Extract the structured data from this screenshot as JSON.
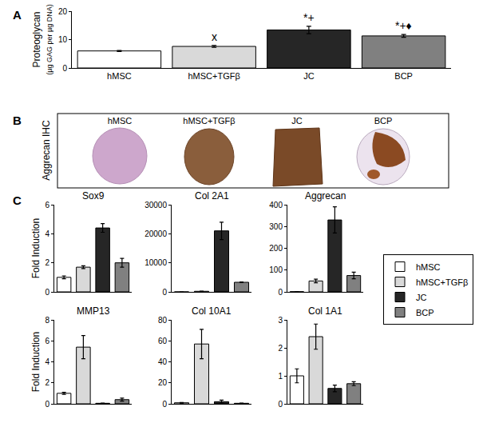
{
  "panel_labels": [
    "A",
    "B",
    "C"
  ],
  "panel_b": {
    "row_label": "Aggrecan IHC",
    "titles": [
      "hMSC",
      "hMSC+TGFβ",
      "JC",
      "BCP"
    ]
  },
  "chart_data": [
    {
      "type": "bar",
      "categories": [
        "hMSC",
        "hMSC+TGFβ",
        "JC",
        "BCP"
      ],
      "values": [
        6.0,
        7.6,
        13.4,
        11.3
      ],
      "errors": [
        0.2,
        0.3,
        1.3,
        0.5
      ],
      "colors": [
        "#ffffff",
        "#d9d9d9",
        "#262626",
        "#808080"
      ],
      "ylabel": [
        "Proteoglycan",
        "(µg GAG per µg DNA)"
      ],
      "ylim": [
        0,
        20
      ],
      "yticks": [
        0,
        10,
        20
      ],
      "annotations": [
        {
          "category": "hMSC+TGFβ",
          "text": "x"
        },
        {
          "category": "JC",
          "text": "*+"
        },
        {
          "category": "BCP",
          "text": "*+♦"
        }
      ]
    },
    {
      "type": "bar",
      "title": "Sox9",
      "categories": [
        "hMSC",
        "hMSC+TGFβ",
        "JC",
        "BCP"
      ],
      "values": [
        1.0,
        1.7,
        4.4,
        2.0
      ],
      "errors": [
        0.1,
        0.1,
        0.3,
        0.3
      ],
      "colors": [
        "#ffffff",
        "#d9d9d9",
        "#262626",
        "#808080"
      ],
      "ylabel": "Fold Induction",
      "ylim": [
        0,
        6
      ],
      "yticks": [
        0,
        2,
        4,
        6
      ],
      "tick_labels": "y",
      "legend": "right"
    },
    {
      "type": "bar",
      "title": "Col 2A1",
      "categories": [
        "hMSC",
        "hMSC+TGFβ",
        "JC",
        "BCP"
      ],
      "values": [
        1,
        200,
        21000,
        3300
      ],
      "errors": [
        0,
        50,
        3000,
        100
      ],
      "colors": [
        "#ffffff",
        "#d9d9d9",
        "#262626",
        "#808080"
      ],
      "ylim": [
        0,
        30000
      ],
      "yticks": [
        0,
        10000,
        20000,
        30000
      ],
      "tick_labels": "y"
    },
    {
      "type": "bar",
      "title": "Aggrecan",
      "categories": [
        "hMSC",
        "hMSC+TGFβ",
        "JC",
        "BCP"
      ],
      "values": [
        1,
        50,
        330,
        75
      ],
      "errors": [
        0,
        8,
        60,
        15
      ],
      "colors": [
        "#ffffff",
        "#d9d9d9",
        "#262626",
        "#808080"
      ],
      "ylim": [
        0,
        400
      ],
      "yticks": [
        0,
        100,
        200,
        300,
        400
      ],
      "tick_labels": "y"
    },
    {
      "type": "bar",
      "title": "MMP13",
      "categories": [
        "hMSC",
        "hMSC+TGFβ",
        "JC",
        "BCP"
      ],
      "values": [
        1.0,
        5.4,
        0.05,
        0.4
      ],
      "errors": [
        0.1,
        1.1,
        0.02,
        0.15
      ],
      "colors": [
        "#ffffff",
        "#d9d9d9",
        "#262626",
        "#808080"
      ],
      "ylabel": "Fold Induction",
      "ylim": [
        0,
        8
      ],
      "yticks": [
        0,
        2,
        4,
        6,
        8
      ],
      "tick_labels": "y"
    },
    {
      "type": "bar",
      "title": "Col 10A1",
      "categories": [
        "hMSC",
        "hMSC+TGFβ",
        "JC",
        "BCP"
      ],
      "values": [
        1,
        57,
        2,
        0.5
      ],
      "errors": [
        0.3,
        14,
        1.5,
        0.2
      ],
      "colors": [
        "#ffffff",
        "#d9d9d9",
        "#262626",
        "#808080"
      ],
      "ylim": [
        0,
        80
      ],
      "yticks": [
        0,
        20,
        40,
        60,
        80
      ],
      "tick_labels": "y"
    },
    {
      "type": "bar",
      "title": "Col 1A1",
      "categories": [
        "hMSC",
        "hMSC+TGFβ",
        "JC",
        "BCP"
      ],
      "values": [
        1.0,
        2.4,
        0.55,
        0.72
      ],
      "errors": [
        0.25,
        0.45,
        0.12,
        0.07
      ],
      "colors": [
        "#ffffff",
        "#d9d9d9",
        "#262626",
        "#808080"
      ],
      "ylim": [
        0,
        3
      ],
      "yticks": [
        0,
        1,
        2,
        3
      ],
      "tick_labels": "y"
    }
  ]
}
